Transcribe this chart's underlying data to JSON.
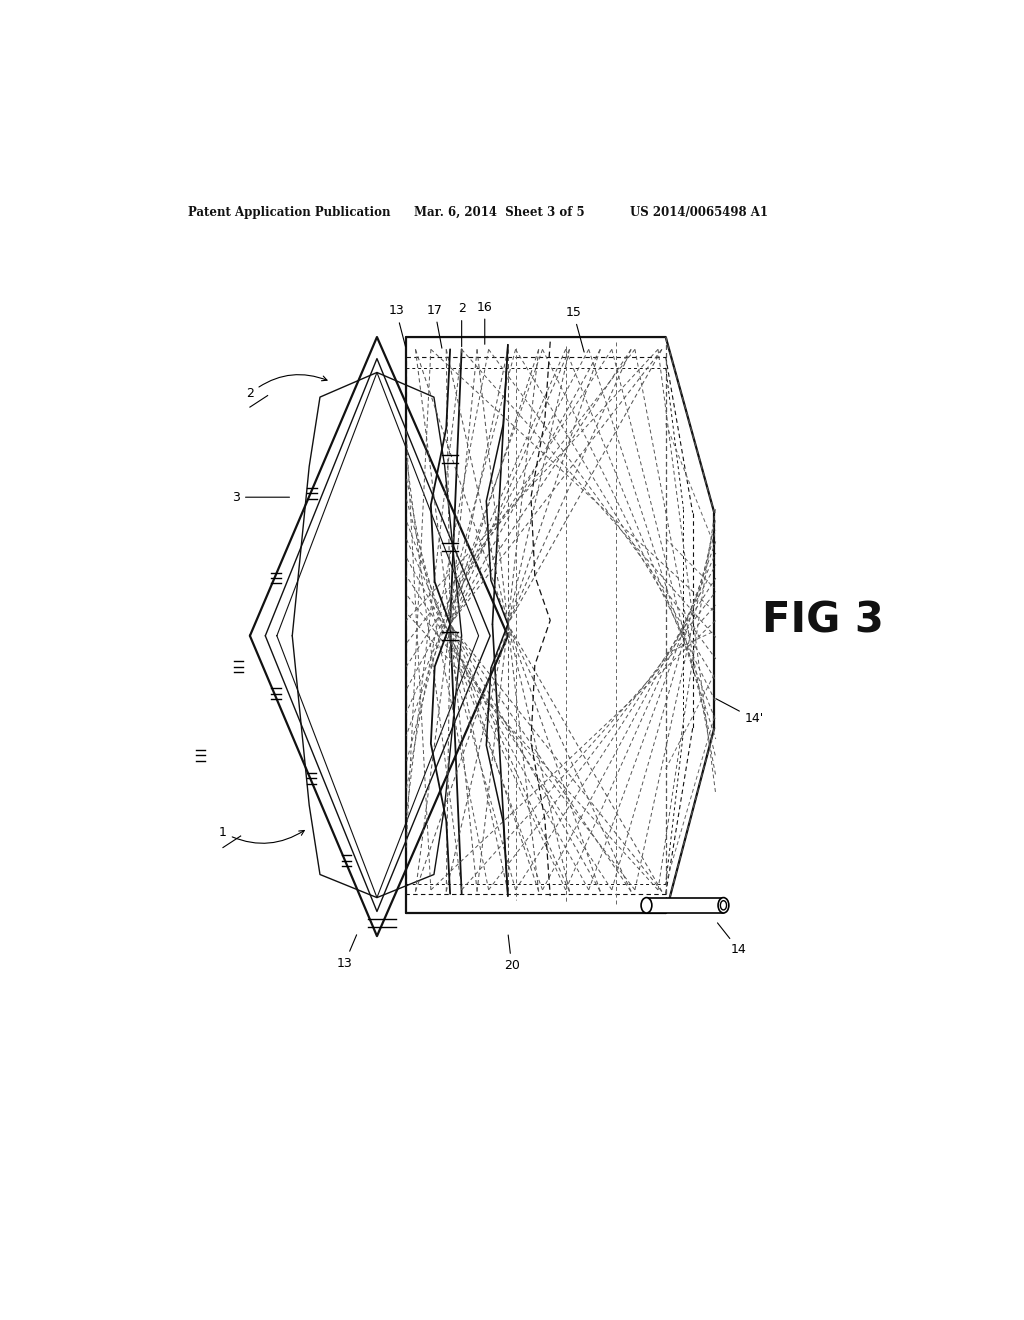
{
  "bg_color": "#ffffff",
  "header_text": "Patent Application Publication",
  "header_date": "Mar. 6, 2014  Sheet 3 of 5",
  "header_patent": "US 2014/0065498 A1",
  "fig_label": "FIG 3",
  "lc": "#111111"
}
